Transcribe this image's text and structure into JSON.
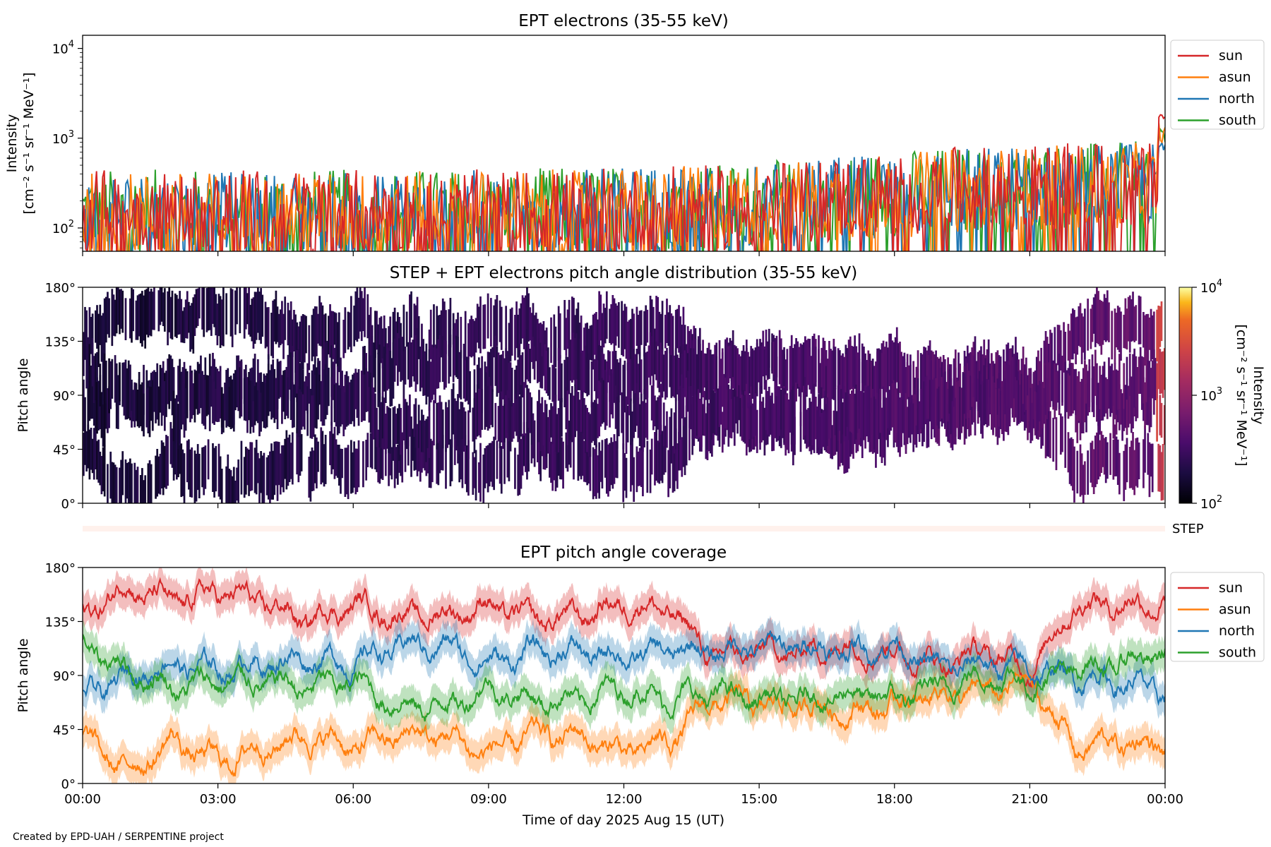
{
  "figure": {
    "credit": "Created by EPD-UAH / SERPENTINE project",
    "xlabel": "Time of day 2025 Aug 15 (UT)",
    "x_ticks": [
      "00:00",
      "03:00",
      "06:00",
      "09:00",
      "12:00",
      "15:00",
      "18:00",
      "21:00",
      "00:00"
    ]
  },
  "colors": {
    "sun": "#d62728",
    "asun": "#ff7f0e",
    "north": "#1f77b4",
    "south": "#2ca02c"
  },
  "chart_data": [
    {
      "type": "line",
      "title": "EPT electrons (35-55 keV)",
      "ylabel_line1": "Intensity",
      "ylabel_line2": "[cm⁻² s⁻¹ sr⁻¹ MeV⁻¹]",
      "yscale": "log",
      "ylim": [
        55,
        14000
      ],
      "xlim_hours": [
        0,
        24
      ],
      "y_ticks": [
        {
          "base": "10",
          "exp": "2",
          "value": 100
        },
        {
          "base": "10",
          "exp": "3",
          "value": 1000
        },
        {
          "base": "10",
          "exp": "4",
          "value": 10000
        }
      ],
      "legend": {
        "placement": "outside-top-right",
        "entries": [
          "sun",
          "asun",
          "north",
          "south"
        ]
      },
      "series": [
        {
          "name": "sun",
          "typical": [
            150,
            150,
            150,
            150,
            150,
            150,
            150,
            150,
            160,
            170,
            190,
            230,
            260,
            280,
            300,
            300
          ],
          "final_peak": 2300
        },
        {
          "name": "asun",
          "typical": [
            140,
            140,
            140,
            140,
            140,
            145,
            150,
            150,
            160,
            170,
            190,
            220,
            250,
            270,
            290,
            300
          ],
          "final_peak": 1500
        },
        {
          "name": "north",
          "typical": [
            140,
            140,
            140,
            140,
            140,
            145,
            150,
            150,
            160,
            170,
            190,
            230,
            260,
            280,
            300,
            300
          ],
          "final_peak": 1000
        },
        {
          "name": "south",
          "typical": [
            150,
            150,
            150,
            150,
            150,
            150,
            155,
            160,
            165,
            175,
            195,
            235,
            265,
            285,
            300,
            310
          ],
          "final_peak": 1300
        }
      ]
    },
    {
      "type": "heatmap",
      "title": "STEP + EPT electrons pitch angle distribution (35-55 keV)",
      "ylabel": "Pitch angle",
      "ylim_deg": [
        0,
        180
      ],
      "y_ticks": [
        "0°",
        "45°",
        "90°",
        "135°",
        "180°"
      ],
      "xlim_hours": [
        0,
        24
      ],
      "colorbar": {
        "scale": "log",
        "range": [
          100,
          10000
        ],
        "label": "Intensity",
        "label2": "[cm⁻² s⁻¹ sr⁻¹ MeV⁻¹]",
        "ticks": [
          {
            "base": "10",
            "exp": "2"
          },
          {
            "base": "10",
            "exp": "3"
          },
          {
            "base": "10",
            "exp": "4"
          }
        ]
      },
      "step_label": "STEP"
    },
    {
      "type": "line",
      "title": "EPT pitch angle coverage",
      "ylabel": "Pitch angle",
      "ylim_deg": [
        0,
        180
      ],
      "y_ticks": [
        "0°",
        "45°",
        "90°",
        "135°",
        "180°"
      ],
      "xlim_hours": [
        0,
        24
      ],
      "legend": {
        "placement": "outside-top-right",
        "entries": [
          "sun",
          "asun",
          "north",
          "south"
        ]
      },
      "x_hours": [
        0,
        1,
        2,
        3,
        4,
        5,
        6,
        7,
        8,
        9,
        10,
        11,
        12,
        13,
        14,
        15,
        16,
        17,
        18,
        19,
        20,
        21,
        22,
        23,
        24
      ],
      "series": [
        {
          "name": "sun",
          "values": [
            140,
            165,
            150,
            160,
            150,
            135,
            150,
            140,
            140,
            150,
            135,
            140,
            150,
            145,
            105,
            110,
            110,
            115,
            110,
            100,
            110,
            95,
            150,
            150,
            150
          ]
        },
        {
          "name": "asun",
          "values": [
            38,
            10,
            35,
            18,
            30,
            40,
            30,
            40,
            40,
            25,
            40,
            40,
            25,
            35,
            70,
            65,
            65,
            60,
            65,
            75,
            75,
            85,
            30,
            35,
            30
          ]
        },
        {
          "name": "north",
          "values": [
            70,
            90,
            100,
            95,
            100,
            105,
            100,
            115,
            115,
            100,
            110,
            110,
            105,
            110,
            110,
            115,
            115,
            110,
            115,
            95,
            100,
            95,
            90,
            85,
            75
          ]
        },
        {
          "name": "south",
          "values": [
            115,
            95,
            80,
            85,
            85,
            80,
            85,
            65,
            65,
            80,
            70,
            70,
            80,
            70,
            75,
            70,
            70,
            75,
            70,
            80,
            90,
            85,
            95,
            100,
            110
          ]
        }
      ]
    }
  ]
}
